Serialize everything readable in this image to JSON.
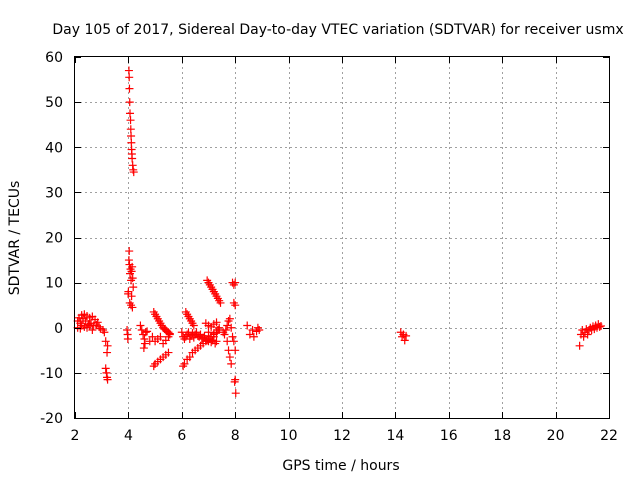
{
  "chart_data": {
    "type": "scatter",
    "title": "Day 105 of 2017, Sidereal Day-to-day VTEC variation (SDTVAR) for receiver usmx",
    "xlabel": "GPS time / hours",
    "ylabel": "SDTVAR / TECUs",
    "xlim": [
      2,
      22
    ],
    "ylim": [
      -20,
      60
    ],
    "xticks": [
      2,
      4,
      6,
      8,
      10,
      12,
      14,
      16,
      18,
      20,
      22
    ],
    "yticks": [
      -20,
      -10,
      0,
      10,
      20,
      30,
      40,
      50,
      60
    ],
    "grid": true,
    "marker": "plus",
    "color": "#ff0000",
    "series": [
      {
        "name": "SDTVAR",
        "points": [
          [
            2.1,
            1.5
          ],
          [
            2.15,
            2.2
          ],
          [
            2.2,
            1.0
          ],
          [
            2.25,
            2.8
          ],
          [
            2.3,
            2.0
          ],
          [
            2.35,
            3.0
          ],
          [
            2.4,
            1.5
          ],
          [
            2.45,
            2.6
          ],
          [
            2.5,
            0.8
          ],
          [
            2.55,
            2.2
          ],
          [
            2.6,
            1.0
          ],
          [
            2.65,
            2.5
          ],
          [
            2.7,
            0.5
          ],
          [
            2.75,
            1.8
          ],
          [
            2.8,
            0.6
          ],
          [
            2.85,
            1.2
          ],
          [
            2.9,
            0.2
          ],
          [
            2.95,
            -0.2
          ],
          [
            2.25,
            0.5
          ],
          [
            2.35,
            0.2
          ],
          [
            2.45,
            0.0
          ],
          [
            2.55,
            0.5
          ],
          [
            2.65,
            -0.5
          ],
          [
            2.1,
            0.0
          ],
          [
            2.2,
            -0.2
          ],
          [
            3.05,
            -0.5
          ],
          [
            3.1,
            -1.0
          ],
          [
            3.15,
            -3.0
          ],
          [
            3.2,
            -5.5
          ],
          [
            3.22,
            -4.0
          ],
          [
            3.15,
            -9.0
          ],
          [
            3.18,
            -10.0
          ],
          [
            3.2,
            -11.0
          ],
          [
            3.22,
            -11.5
          ],
          [
            3.95,
            -0.5
          ],
          [
            3.97,
            -1.5
          ],
          [
            3.98,
            -2.5
          ],
          [
            3.99,
            7.5
          ],
          [
            4.0,
            8.0
          ],
          [
            4.02,
            15.0
          ],
          [
            4.03,
            17.0
          ],
          [
            4.04,
            14.0
          ],
          [
            4.06,
            12.0
          ],
          [
            4.08,
            13.0
          ],
          [
            4.1,
            10.5
          ],
          [
            4.12,
            12.5
          ],
          [
            4.14,
            13.5
          ],
          [
            4.16,
            11.0
          ],
          [
            4.18,
            9.0
          ],
          [
            4.05,
            5.5
          ],
          [
            4.1,
            5.0
          ],
          [
            4.15,
            4.5
          ],
          [
            4.12,
            7.0
          ],
          [
            4.02,
            57.0
          ],
          [
            4.03,
            55.5
          ],
          [
            4.04,
            53.0
          ],
          [
            4.05,
            50.0
          ],
          [
            4.06,
            47.5
          ],
          [
            4.08,
            46.0
          ],
          [
            4.09,
            44.0
          ],
          [
            4.1,
            42.5
          ],
          [
            4.11,
            41.0
          ],
          [
            4.12,
            39.5
          ],
          [
            4.13,
            38.5
          ],
          [
            4.14,
            37.5
          ],
          [
            4.16,
            36.0
          ],
          [
            4.18,
            35.0
          ],
          [
            4.2,
            34.5
          ],
          [
            4.45,
            0.5
          ],
          [
            4.5,
            -0.5
          ],
          [
            4.55,
            -1.5
          ],
          [
            4.58,
            -4.5
          ],
          [
            4.6,
            -2.5
          ],
          [
            4.62,
            -3.5
          ],
          [
            4.65,
            -1.0
          ],
          [
            4.7,
            -0.8
          ],
          [
            4.8,
            -3.0
          ],
          [
            4.9,
            -2.0
          ],
          [
            5.0,
            -3.0
          ],
          [
            5.1,
            -2.5
          ],
          [
            5.2,
            -2.0
          ],
          [
            5.3,
            -3.5
          ],
          [
            5.4,
            -2.8
          ],
          [
            5.5,
            -2.0
          ],
          [
            5.55,
            -1.5
          ],
          [
            4.95,
            3.5
          ],
          [
            5.0,
            3.0
          ],
          [
            5.05,
            2.5
          ],
          [
            5.1,
            2.0
          ],
          [
            5.15,
            1.5
          ],
          [
            5.2,
            1.0
          ],
          [
            5.25,
            0.5
          ],
          [
            5.3,
            0.0
          ],
          [
            5.35,
            -0.3
          ],
          [
            5.4,
            -0.5
          ],
          [
            5.45,
            -0.8
          ],
          [
            5.5,
            -1.0
          ],
          [
            5.55,
            -1.3
          ],
          [
            4.95,
            -8.5
          ],
          [
            5.0,
            -8.0
          ],
          [
            5.1,
            -7.5
          ],
          [
            5.2,
            -7.0
          ],
          [
            5.3,
            -6.5
          ],
          [
            5.4,
            -6.0
          ],
          [
            5.5,
            -5.5
          ],
          [
            6.0,
            -1.0
          ],
          [
            6.05,
            -2.0
          ],
          [
            6.1,
            -2.5
          ],
          [
            6.15,
            -2.0
          ],
          [
            6.2,
            -1.5
          ],
          [
            6.25,
            -1.0
          ],
          [
            6.3,
            -2.5
          ],
          [
            6.35,
            -1.8
          ],
          [
            6.4,
            -1.2
          ],
          [
            6.45,
            -2.2
          ],
          [
            6.5,
            -1.5
          ],
          [
            6.55,
            -1.0
          ],
          [
            6.6,
            -1.8
          ],
          [
            6.65,
            -2.0
          ],
          [
            6.7,
            -1.5
          ],
          [
            6.75,
            -2.5
          ],
          [
            6.8,
            -2.2
          ],
          [
            6.85,
            -1.8
          ],
          [
            6.9,
            -2.5
          ],
          [
            6.95,
            -2.8
          ],
          [
            7.0,
            -3.0
          ],
          [
            7.05,
            -2.5
          ],
          [
            7.1,
            -3.2
          ],
          [
            7.15,
            -2.8
          ],
          [
            7.2,
            -2.0
          ],
          [
            7.25,
            -3.5
          ],
          [
            7.3,
            -3.0
          ],
          [
            6.05,
            -8.5
          ],
          [
            6.1,
            -8.0
          ],
          [
            6.2,
            -7.0
          ],
          [
            6.3,
            -6.5
          ],
          [
            6.4,
            -5.5
          ],
          [
            6.5,
            -5.0
          ],
          [
            6.6,
            -4.5
          ],
          [
            6.7,
            -4.0
          ],
          [
            6.8,
            -3.5
          ],
          [
            6.9,
            -3.0
          ],
          [
            7.0,
            -2.5
          ],
          [
            7.1,
            -2.0
          ],
          [
            7.2,
            -1.5
          ],
          [
            7.3,
            -1.0
          ],
          [
            7.4,
            -0.5
          ],
          [
            6.15,
            3.5
          ],
          [
            6.2,
            3.0
          ],
          [
            6.25,
            2.5
          ],
          [
            6.3,
            2.0
          ],
          [
            6.35,
            1.5
          ],
          [
            6.4,
            1.0
          ],
          [
            6.45,
            0.5
          ],
          [
            6.9,
            1.0
          ],
          [
            7.0,
            0.5
          ],
          [
            7.1,
            0.2
          ],
          [
            7.2,
            0.8
          ],
          [
            7.3,
            1.2
          ],
          [
            7.4,
            0.0
          ],
          [
            7.0,
            -1.0
          ],
          [
            7.2,
            -1.2
          ],
          [
            7.35,
            -0.5
          ],
          [
            6.95,
            10.5
          ],
          [
            7.0,
            10.0
          ],
          [
            7.05,
            9.5
          ],
          [
            7.1,
            9.0
          ],
          [
            7.15,
            8.5
          ],
          [
            7.2,
            8.0
          ],
          [
            7.25,
            7.5
          ],
          [
            7.3,
            7.0
          ],
          [
            7.35,
            6.5
          ],
          [
            7.4,
            6.0
          ],
          [
            7.45,
            5.5
          ],
          [
            7.55,
            -1.0
          ],
          [
            7.6,
            -1.5
          ],
          [
            7.65,
            -0.5
          ],
          [
            7.7,
            -3.0
          ],
          [
            7.75,
            -5.0
          ],
          [
            7.8,
            -6.5
          ],
          [
            7.85,
            -8.0
          ],
          [
            7.7,
            0.5
          ],
          [
            7.75,
            1.5
          ],
          [
            7.8,
            2.0
          ],
          [
            7.85,
            0.0
          ],
          [
            7.9,
            -2.0
          ],
          [
            7.9,
            10.0
          ],
          [
            7.95,
            9.5
          ],
          [
            8.0,
            10.0
          ],
          [
            7.95,
            5.5
          ],
          [
            8.0,
            5.0
          ],
          [
            7.95,
            -3.0
          ],
          [
            8.0,
            -5.0
          ],
          [
            7.98,
            -12.0
          ],
          [
            8.0,
            -11.5
          ],
          [
            8.02,
            -14.5
          ],
          [
            8.45,
            0.5
          ],
          [
            8.55,
            -1.5
          ],
          [
            8.65,
            -0.5
          ],
          [
            8.7,
            -2.0
          ],
          [
            8.8,
            -0.8
          ],
          [
            8.85,
            0.0
          ],
          [
            8.9,
            -0.5
          ],
          [
            14.2,
            -1.0
          ],
          [
            14.25,
            -2.0
          ],
          [
            14.3,
            -1.5
          ],
          [
            14.35,
            -2.8
          ],
          [
            14.4,
            -1.8
          ],
          [
            20.9,
            -4.0
          ],
          [
            20.95,
            -1.5
          ],
          [
            21.0,
            -0.5
          ],
          [
            21.05,
            -2.0
          ],
          [
            21.1,
            -1.0
          ],
          [
            21.15,
            -0.3
          ],
          [
            21.2,
            -1.5
          ],
          [
            21.25,
            -0.5
          ],
          [
            21.3,
            0.0
          ],
          [
            21.35,
            -0.5
          ],
          [
            21.4,
            0.3
          ],
          [
            21.45,
            -0.3
          ],
          [
            21.5,
            0.5
          ],
          [
            21.55,
            0.0
          ],
          [
            21.6,
            0.8
          ],
          [
            21.65,
            0.2
          ],
          [
            21.7,
            0.4
          ]
        ]
      }
    ]
  }
}
